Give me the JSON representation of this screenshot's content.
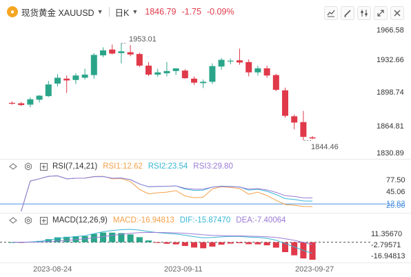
{
  "toolbar": {
    "symbol": "现货黄金 XAUUSD",
    "period": "日K",
    "price": "1846.79",
    "change": "-1.75",
    "change_pct": "-0.09%"
  },
  "colors": {
    "up": "#2ba58a",
    "down": "#e0394a",
    "rsi1": "#f5a04a",
    "rsi2": "#36b5d4",
    "rsi3": "#9a7bd6",
    "macd": "#f5a04a",
    "dif": "#36b5d4",
    "dea": "#9a7bd6",
    "current_line": "#4a90e2"
  },
  "main_chart": {
    "y_labels": [
      "1966.58",
      "1932.66",
      "1898.74",
      "1864.81",
      "1830.89"
    ],
    "high_label": "1953.01",
    "low_label": "1844.46"
  },
  "rsi": {
    "label": "RSI(7,14,21)",
    "rsi1": "RSI1:12.62",
    "rsi2": "RSI2:23.54",
    "rsi3": "RSI3:29.80",
    "y_labels": [
      "77.50",
      "45.06",
      "12.62",
      "20.00"
    ]
  },
  "macd": {
    "label": "MACD(12,26,9)",
    "macd": "MACD:-16.94813",
    "dif": "DIF:-15.87470",
    "dea": "DEA:-7.40064",
    "y_labels": [
      "11.35670",
      "-2.79571",
      "-16.94813"
    ]
  },
  "dates": [
    "2023-08-24",
    "2023-09-11",
    "2023-09-27"
  ],
  "chart_data": {
    "type": "candlestick",
    "candles": [
      {
        "o": 1886.5,
        "h": 1888.0,
        "l": 1884.5,
        "c": 1885.5
      },
      {
        "o": 1886.0,
        "h": 1887.5,
        "l": 1883.0,
        "c": 1884.0
      },
      {
        "o": 1884.5,
        "h": 1892.5,
        "l": 1881.5,
        "c": 1890.5
      },
      {
        "o": 1890.0,
        "h": 1895.0,
        "l": 1887.0,
        "c": 1894.5
      },
      {
        "o": 1894.0,
        "h": 1911.0,
        "l": 1893.0,
        "c": 1907.0
      },
      {
        "o": 1908.0,
        "h": 1918.5,
        "l": 1905.0,
        "c": 1914.5
      },
      {
        "o": 1913.5,
        "h": 1917.0,
        "l": 1897.5,
        "c": 1911.5
      },
      {
        "o": 1912.0,
        "h": 1919.5,
        "l": 1907.5,
        "c": 1917.0
      },
      {
        "o": 1914.5,
        "h": 1924.5,
        "l": 1912.5,
        "c": 1918.0
      },
      {
        "o": 1917.5,
        "h": 1942.0,
        "l": 1913.5,
        "c": 1940.0
      },
      {
        "o": 1939.5,
        "h": 1948.5,
        "l": 1937.5,
        "c": 1945.0
      },
      {
        "o": 1946.0,
        "h": 1951.5,
        "l": 1940.5,
        "c": 1941.5
      },
      {
        "o": 1942.0,
        "h": 1953.0,
        "l": 1930.5,
        "c": 1944.0
      },
      {
        "o": 1943.0,
        "h": 1951.0,
        "l": 1938.5,
        "c": 1940.5
      },
      {
        "o": 1941.0,
        "h": 1942.5,
        "l": 1926.5,
        "c": 1928.0
      },
      {
        "o": 1928.0,
        "h": 1932.0,
        "l": 1916.5,
        "c": 1918.0
      },
      {
        "o": 1918.0,
        "h": 1924.5,
        "l": 1915.5,
        "c": 1920.5
      },
      {
        "o": 1919.5,
        "h": 1932.0,
        "l": 1916.0,
        "c": 1922.0
      },
      {
        "o": 1922.0,
        "h": 1925.0,
        "l": 1917.5,
        "c": 1925.0
      },
      {
        "o": 1922.5,
        "h": 1924.0,
        "l": 1913.5,
        "c": 1914.0
      },
      {
        "o": 1913.5,
        "h": 1916.0,
        "l": 1906.5,
        "c": 1909.0
      },
      {
        "o": 1908.5,
        "h": 1912.5,
        "l": 1903.0,
        "c": 1910.0
      },
      {
        "o": 1910.0,
        "h": 1930.5,
        "l": 1907.5,
        "c": 1927.5
      },
      {
        "o": 1927.0,
        "h": 1936.5,
        "l": 1923.5,
        "c": 1934.5
      },
      {
        "o": 1933.0,
        "h": 1936.0,
        "l": 1929.5,
        "c": 1933.5
      },
      {
        "o": 1934.0,
        "h": 1947.0,
        "l": 1929.0,
        "c": 1931.5
      },
      {
        "o": 1932.0,
        "h": 1935.0,
        "l": 1916.0,
        "c": 1920.5
      },
      {
        "o": 1920.5,
        "h": 1928.0,
        "l": 1917.0,
        "c": 1925.0
      },
      {
        "o": 1925.0,
        "h": 1928.0,
        "l": 1914.5,
        "c": 1917.0
      },
      {
        "o": 1917.5,
        "h": 1919.0,
        "l": 1899.5,
        "c": 1901.0
      },
      {
        "o": 1900.5,
        "h": 1903.5,
        "l": 1870.0,
        "c": 1872.0
      },
      {
        "o": 1871.5,
        "h": 1873.5,
        "l": 1857.0,
        "c": 1864.5
      },
      {
        "o": 1865.0,
        "h": 1877.5,
        "l": 1844.5,
        "c": 1848.5
      },
      {
        "o": 1848.0,
        "h": 1849.5,
        "l": 1846.0,
        "c": 1846.79
      }
    ],
    "y_range": [
      1830.89,
      1966.58
    ]
  }
}
